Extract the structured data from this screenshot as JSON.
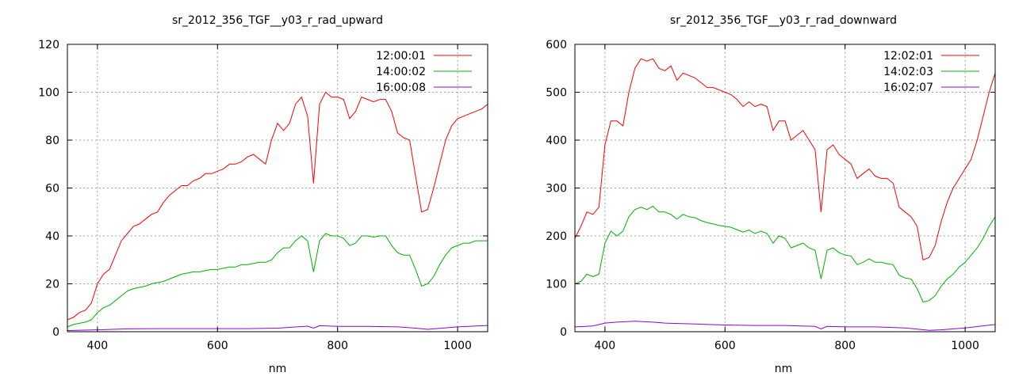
{
  "chart_data": [
    {
      "type": "line",
      "title": "sr_2012_356_TGF__y03_r_rad_upward",
      "xlabel": "nm",
      "ylabel": "",
      "xlim": [
        350,
        1050
      ],
      "ylim": [
        0,
        120
      ],
      "xticks": [
        400,
        600,
        800,
        1000
      ],
      "yticks": [
        0,
        20,
        40,
        60,
        80,
        100,
        120
      ],
      "grid": true,
      "legend_position": "top-right",
      "series": [
        {
          "name": "12:00:01",
          "color": "#ff0000",
          "x": [
            350,
            360,
            370,
            380,
            390,
            400,
            410,
            420,
            430,
            440,
            450,
            460,
            470,
            480,
            490,
            500,
            510,
            520,
            530,
            540,
            550,
            560,
            570,
            580,
            590,
            600,
            610,
            620,
            630,
            640,
            650,
            660,
            670,
            680,
            690,
            700,
            710,
            720,
            730,
            740,
            750,
            760,
            770,
            780,
            790,
            800,
            810,
            820,
            830,
            840,
            850,
            860,
            870,
            880,
            890,
            900,
            910,
            920,
            930,
            940,
            950,
            960,
            970,
            980,
            990,
            1000,
            1010,
            1020,
            1030,
            1040,
            1050
          ],
          "y": [
            5,
            6,
            8,
            9,
            12,
            20,
            24,
            26,
            32,
            38,
            41,
            44,
            45,
            47,
            49,
            50,
            54,
            57,
            59,
            61,
            61,
            63,
            64,
            66,
            66,
            67,
            68,
            70,
            70,
            71,
            73,
            74,
            72,
            70,
            80,
            87,
            84,
            87,
            95,
            98,
            90,
            62,
            95,
            100,
            98,
            98,
            97,
            89,
            92,
            98,
            97,
            96,
            97,
            97,
            92,
            83,
            81,
            80,
            65,
            50,
            51,
            60,
            70,
            80,
            86,
            89,
            90,
            91,
            92,
            93,
            95
          ]
        },
        {
          "name": "14:00:02",
          "color": "#00b000",
          "x": [
            350,
            360,
            370,
            380,
            390,
            400,
            410,
            420,
            430,
            440,
            450,
            460,
            470,
            480,
            490,
            500,
            510,
            520,
            530,
            540,
            550,
            560,
            570,
            580,
            590,
            600,
            610,
            620,
            630,
            640,
            650,
            660,
            670,
            680,
            690,
            700,
            710,
            720,
            730,
            740,
            750,
            760,
            770,
            780,
            790,
            800,
            810,
            820,
            830,
            840,
            850,
            860,
            870,
            880,
            890,
            900,
            910,
            920,
            930,
            940,
            950,
            960,
            970,
            980,
            990,
            1000,
            1010,
            1020,
            1030,
            1040,
            1050
          ],
          "y": [
            2,
            3,
            3.5,
            4,
            5,
            8,
            10,
            11,
            13,
            15,
            17,
            18,
            18.5,
            19,
            20,
            20.5,
            21,
            22,
            23,
            24,
            24.5,
            25,
            25,
            25.5,
            26,
            26,
            26.5,
            27,
            27,
            28,
            28,
            28.5,
            29,
            29,
            30,
            33,
            35,
            35,
            38,
            40,
            38,
            25,
            38,
            41,
            40,
            40,
            39,
            36,
            37,
            40,
            40,
            39.5,
            40,
            40,
            36,
            33,
            32,
            32,
            26,
            19,
            20,
            23,
            28,
            32,
            35,
            36,
            37,
            37,
            38,
            38,
            38
          ]
        },
        {
          "name": "16:00:08",
          "color": "#9400d3",
          "x": [
            350,
            400,
            450,
            500,
            550,
            600,
            650,
            700,
            750,
            760,
            770,
            800,
            850,
            900,
            930,
            950,
            1000,
            1050
          ],
          "y": [
            0.5,
            0.8,
            1.2,
            1.3,
            1.3,
            1.3,
            1.3,
            1.5,
            2.3,
            1.5,
            2.5,
            2.2,
            2.2,
            2.0,
            1.5,
            1.0,
            2.0,
            2.6
          ]
        }
      ]
    },
    {
      "type": "line",
      "title": "sr_2012_356_TGF__y03_r_rad_downward",
      "xlabel": "nm",
      "ylabel": "",
      "xlim": [
        350,
        1050
      ],
      "ylim": [
        0,
        600
      ],
      "xticks": [
        400,
        600,
        800,
        1000
      ],
      "yticks": [
        0,
        100,
        200,
        300,
        400,
        500,
        600
      ],
      "grid": true,
      "legend_position": "top-right",
      "series": [
        {
          "name": "12:02:01",
          "color": "#ff0000",
          "x": [
            350,
            360,
            370,
            380,
            390,
            400,
            410,
            420,
            430,
            440,
            450,
            460,
            470,
            480,
            490,
            500,
            510,
            520,
            530,
            540,
            550,
            560,
            570,
            580,
            590,
            600,
            610,
            620,
            630,
            640,
            650,
            660,
            670,
            680,
            690,
            700,
            710,
            720,
            730,
            740,
            750,
            760,
            770,
            780,
            790,
            800,
            810,
            820,
            830,
            840,
            850,
            860,
            870,
            880,
            890,
            900,
            910,
            920,
            930,
            940,
            950,
            960,
            970,
            980,
            990,
            1000,
            1010,
            1020,
            1030,
            1040,
            1050
          ],
          "y": [
            195,
            220,
            250,
            245,
            260,
            390,
            440,
            440,
            430,
            500,
            550,
            570,
            565,
            570,
            550,
            545,
            555,
            525,
            540,
            535,
            530,
            520,
            510,
            510,
            505,
            500,
            495,
            485,
            470,
            480,
            470,
            475,
            470,
            420,
            440,
            440,
            400,
            410,
            420,
            400,
            380,
            250,
            380,
            390,
            370,
            360,
            350,
            320,
            330,
            340,
            325,
            320,
            320,
            310,
            260,
            250,
            240,
            220,
            150,
            155,
            180,
            230,
            270,
            300,
            320,
            340,
            360,
            400,
            450,
            500,
            540
          ]
        },
        {
          "name": "14:02:03",
          "color": "#00b000",
          "x": [
            350,
            360,
            370,
            380,
            390,
            400,
            410,
            420,
            430,
            440,
            450,
            460,
            470,
            480,
            490,
            500,
            510,
            520,
            530,
            540,
            550,
            560,
            570,
            580,
            590,
            600,
            610,
            620,
            630,
            640,
            650,
            660,
            670,
            680,
            690,
            700,
            710,
            720,
            730,
            740,
            750,
            760,
            770,
            780,
            790,
            800,
            810,
            820,
            830,
            840,
            850,
            860,
            870,
            880,
            890,
            900,
            910,
            920,
            930,
            940,
            950,
            960,
            970,
            980,
            990,
            1000,
            1010,
            1020,
            1030,
            1040,
            1050
          ],
          "y": [
            100,
            105,
            120,
            115,
            120,
            185,
            210,
            200,
            210,
            240,
            255,
            260,
            255,
            262,
            250,
            250,
            245,
            235,
            245,
            240,
            238,
            232,
            228,
            225,
            222,
            220,
            218,
            213,
            208,
            212,
            205,
            210,
            205,
            185,
            200,
            195,
            175,
            180,
            185,
            175,
            170,
            110,
            170,
            175,
            165,
            160,
            158,
            140,
            145,
            152,
            145,
            145,
            142,
            140,
            118,
            112,
            110,
            90,
            62,
            65,
            75,
            95,
            110,
            120,
            135,
            145,
            160,
            175,
            195,
            220,
            240
          ]
        },
        {
          "name": "16:02:07",
          "color": "#9400d3",
          "x": [
            350,
            380,
            400,
            420,
            450,
            480,
            500,
            550,
            600,
            650,
            700,
            750,
            760,
            770,
            800,
            850,
            900,
            940,
            960,
            1000,
            1050
          ],
          "y": [
            10,
            12,
            18,
            20,
            22,
            20,
            18,
            16,
            14,
            13,
            13,
            11,
            6,
            11,
            10,
            10,
            8,
            3,
            4,
            8,
            15
          ]
        }
      ]
    }
  ]
}
